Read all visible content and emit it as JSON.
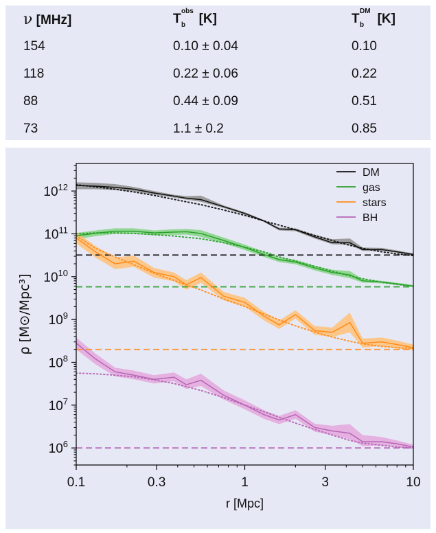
{
  "table": {
    "headers": {
      "nu_symbol": "ν",
      "nu_unit": "[MHz]",
      "tobs_base": "T",
      "tobs_sup": "obs",
      "tobs_sub": "b",
      "tobs_unit": "[K]",
      "tdm_base": "T",
      "tdm_sup": "DM",
      "tdm_sub": "b",
      "tdm_unit": "[K]"
    },
    "rows": [
      {
        "nu": "154",
        "tobs": "0.10 ± 0.04",
        "tdm": "0.10"
      },
      {
        "nu": "118",
        "tobs": "0.22 ± 0.06",
        "tdm": "0.22"
      },
      {
        "nu": "88",
        "tobs": "0.44 ± 0.09",
        "tdm": "0.51"
      },
      {
        "nu": "73",
        "tobs": "1.1 ± 0.2",
        "tdm": "0.85"
      }
    ]
  },
  "chart_data": {
    "type": "line",
    "xlabel": "r [Mpc]",
    "ylabel": "ρ [M⊙/Mpc³]",
    "xscale": "log",
    "yscale": "log",
    "xlim": [
      0.1,
      10
    ],
    "ylim": [
      400000,
      4400000000000.0
    ],
    "xticks": [
      {
        "v": 0.1,
        "label": "0.1"
      },
      {
        "v": 0.3,
        "label": "0.3"
      },
      {
        "v": 1,
        "label": "1"
      },
      {
        "v": 3,
        "label": "3"
      },
      {
        "v": 10,
        "label": "10"
      }
    ],
    "yticks": [
      {
        "v": 1000000.0,
        "label": "10",
        "exp": "6"
      },
      {
        "v": 10000000.0,
        "label": "10",
        "exp": "7"
      },
      {
        "v": 100000000.0,
        "label": "10",
        "exp": "8"
      },
      {
        "v": 1000000000.0,
        "label": "10",
        "exp": "9"
      },
      {
        "v": 10000000000.0,
        "label": "10",
        "exp": "10"
      },
      {
        "v": 100000000000.0,
        "label": "10",
        "exp": "11"
      },
      {
        "v": 1000000000000.0,
        "label": "10",
        "exp": "12"
      }
    ],
    "legend_position": "top-right",
    "x": [
      0.1,
      0.13,
      0.17,
      0.22,
      0.29,
      0.38,
      0.45,
      0.55,
      0.75,
      1.0,
      1.3,
      1.6,
      2.0,
      2.6,
      3.3,
      4.2,
      5.0,
      6.5,
      8.0,
      10.0
    ],
    "series": [
      {
        "name": "DM",
        "color": "#111111",
        "band_color": "#8f8f8f",
        "values": [
          1350000000000.0,
          1300000000000.0,
          1220000000000.0,
          1100000000000.0,
          900000000000.0,
          760000000000.0,
          680000000000.0,
          630000000000.0,
          430000000000.0,
          300000000000.0,
          200000000000.0,
          130000000000.0,
          125000000000.0,
          85000000000.0,
          62000000000.0,
          62000000000.0,
          43000000000.0,
          43000000000.0,
          38000000000.0,
          33000000000.0
        ],
        "upper": [
          1600000000000.0,
          1550000000000.0,
          1450000000000.0,
          1250000000000.0,
          1000000000000.0,
          820000000000.0,
          760000000000.0,
          780000000000.0,
          460000000000.0,
          320000000000.0,
          210000000000.0,
          140000000000.0,
          135000000000.0,
          95000000000.0,
          75000000000.0,
          78000000000.0,
          48000000000.0,
          47000000000.0,
          41000000000.0,
          35000000000.0
        ],
        "lower": [
          1100000000000.0,
          1100000000000.0,
          1050000000000.0,
          980000000000.0,
          820000000000.0,
          700000000000.0,
          630000000000.0,
          560000000000.0,
          400000000000.0,
          280000000000.0,
          190000000000.0,
          120000000000.0,
          115000000000.0,
          78000000000.0,
          57000000000.0,
          55000000000.0,
          40000000000.0,
          40000000000.0,
          36000000000.0,
          31000000000.0
        ],
        "fit": [
          1400000000000.0,
          1250000000000.0,
          1100000000000.0,
          950000000000.0,
          790000000000.0,
          640000000000.0,
          560000000000.0,
          480000000000.0,
          360000000000.0,
          270000000000.0,
          200000000000.0,
          160000000000.0,
          125000000000.0,
          92000000000.0,
          70000000000.0,
          54000000000.0,
          46000000000.0,
          38000000000.0,
          34000000000.0,
          31000000000.0
        ],
        "reference": 32000000000.0
      },
      {
        "name": "gas",
        "color": "#2ca02c",
        "band_color": "#84d484",
        "values": [
          90000000000.0,
          103000000000.0,
          115000000000.0,
          115000000000.0,
          105000000000.0,
          110000000000.0,
          112000000000.0,
          102000000000.0,
          70000000000.0,
          48000000000.0,
          33000000000.0,
          25000000000.0,
          22000000000.0,
          16000000000.0,
          12500000000.0,
          11000000000.0,
          8000000000.0,
          7500000000.0,
          6800000000.0,
          6000000000.0
        ],
        "upper": [
          105000000000.0,
          120000000000.0,
          135000000000.0,
          135000000000.0,
          120000000000.0,
          128000000000.0,
          130000000000.0,
          122000000000.0,
          82000000000.0,
          56000000000.0,
          38000000000.0,
          28000000000.0,
          25000000000.0,
          18000000000.0,
          14500000000.0,
          13500000000.0,
          8800000000.0,
          8000000000.0,
          7200000000.0,
          6400000000.0
        ],
        "lower": [
          75000000000.0,
          88000000000.0,
          100000000000.0,
          100000000000.0,
          92000000000.0,
          95000000000.0,
          96000000000.0,
          85000000000.0,
          60000000000.0,
          42000000000.0,
          29000000000.0,
          22000000000.0,
          19500000000.0,
          14000000000.0,
          11000000000.0,
          9200000000.0,
          7300000000.0,
          7000000000.0,
          6400000000.0,
          5700000000.0
        ],
        "fit": [
          100000000000.0,
          105000000000.0,
          105000000000.0,
          102000000000.0,
          96000000000.0,
          89000000000.0,
          83000000000.0,
          77000000000.0,
          62000000000.0,
          49000000000.0,
          38000000000.0,
          29000000000.0,
          23000000000.0,
          17500000000.0,
          13500000000.0,
          10500000000.0,
          9000000000.0,
          7400000000.0,
          6600000000.0,
          6000000000.0
        ],
        "reference": 5800000000.0
      },
      {
        "name": "stars",
        "color": "#ff8c1a",
        "band_color": "#ffc178",
        "values": [
          80000000000.0,
          38000000000.0,
          20000000000.0,
          23000000000.0,
          12500000000.0,
          10000000000.0,
          6500000000.0,
          9500000000.0,
          3500000000.0,
          2500000000.0,
          1200000000.0,
          750000000.0,
          1300000000.0,
          550000000.0,
          500000000.0,
          850000000.0,
          280000000.0,
          300000000.0,
          260000000.0,
          220000000.0
        ],
        "upper": [
          110000000000.0,
          52000000000.0,
          28000000000.0,
          31000000000.0,
          16000000000.0,
          12500000000.0,
          8300000000.0,
          12500000000.0,
          4400000000.0,
          3200000000.0,
          1500000000.0,
          950000000.0,
          1650000000.0,
          700000000.0,
          650000000.0,
          1450000000.0,
          360000000.0,
          380000000.0,
          320000000.0,
          260000000.0
        ],
        "lower": [
          60000000000.0,
          28000000000.0,
          15000000000.0,
          17000000000.0,
          9500000000.0,
          7800000000.0,
          5000000000.0,
          7200000000.0,
          2800000000.0,
          2000000000.0,
          950000000.0,
          600000000.0,
          1050000000.0,
          440000000.0,
          390000000.0,
          500000000.0,
          220000000.0,
          240000000.0,
          210000000.0,
          190000000.0
        ],
        "fit": [
          90000000000.0,
          46000000000.0,
          29000000000.0,
          19000000000.0,
          12000000000.0,
          8200000000.0,
          6400000000.0,
          4900000000.0,
          3000000000.0,
          2000000000.0,
          1350000000.0,
          980000000.0,
          710000000.0,
          510000000.0,
          390000000.0,
          310000000.0,
          270000000.0,
          235000000.0,
          220000000.0,
          210000000.0
        ],
        "reference": 200000000.0
      },
      {
        "name": "BH",
        "color": "#b565b5",
        "band_color": "#e4a7dc",
        "values": [
          280000000.0,
          120000000.0,
          60000000.0,
          50000000.0,
          40000000.0,
          45000000.0,
          30000000.0,
          38000000.0,
          17000000.0,
          10000000.0,
          6000000.0,
          4500000.0,
          6000000.0,
          3000000.0,
          2500000.0,
          2200000.0,
          1400000.0,
          1400000.0,
          1250000.0,
          1050000.0
        ],
        "upper": [
          380000000.0,
          160000000.0,
          75000000.0,
          64000000.0,
          50000000.0,
          58000000.0,
          40000000.0,
          54000000.0,
          22000000.0,
          13000000.0,
          7600000.0,
          5600000.0,
          7600000.0,
          3700000.0,
          3300000.0,
          3600000.0,
          2000000.0,
          1800000.0,
          1500000.0,
          1200000.0
        ],
        "lower": [
          200000000.0,
          90000000.0,
          47000000.0,
          40000000.0,
          32000000.0,
          36000000.0,
          24000000.0,
          28000000.0,
          13500000.0,
          8000000.0,
          4800000.0,
          3600000.0,
          4800000.0,
          2400000.0,
          2000000.0,
          1600000.0,
          1100000.0,
          1150000.0,
          1050000.0,
          950000.0
        ],
        "fit": [
          56000000.0,
          54000000.0,
          50000000.0,
          46000000.0,
          39000000.0,
          32000000.0,
          27000000.0,
          22000000.0,
          15000000.0,
          10000000.0,
          7000000.0,
          5200000.0,
          3800000.0,
          2700000.0,
          2000000.0,
          1500000.0,
          1300000.0,
          1150000.0,
          1050000.0,
          1000000.0
        ],
        "reference": 1000000.0
      }
    ]
  }
}
